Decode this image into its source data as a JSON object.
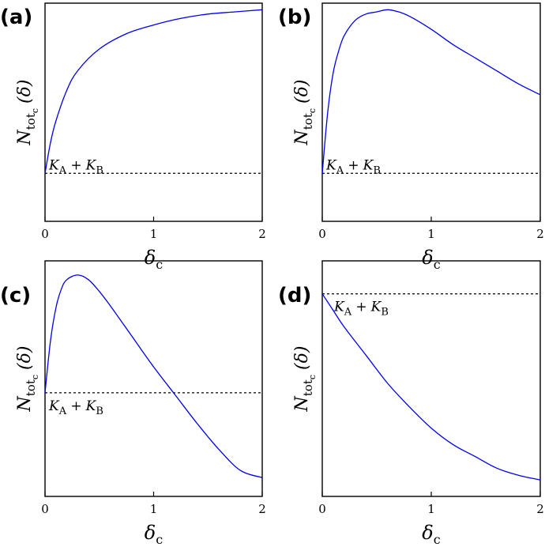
{
  "chart_data": [
    {
      "type": "line",
      "panel_label": "(a)",
      "xlabel": "δc",
      "ylabel": "Ntotc (δ)",
      "x_ticks": [
        "0",
        "1",
        "2"
      ],
      "xlim": [
        0,
        2
      ],
      "ylim": [
        0,
        1
      ],
      "grid": false,
      "reference_line": {
        "label": "KA + KB",
        "y": 0.22,
        "style": "dashed"
      },
      "series": [
        {
          "color": "#0000ee",
          "x": [
            0,
            0.05,
            0.1,
            0.2,
            0.3,
            0.5,
            0.75,
            1.0,
            1.25,
            1.5,
            1.75,
            2.0
          ],
          "y": [
            0.22,
            0.36,
            0.46,
            0.6,
            0.69,
            0.79,
            0.86,
            0.9,
            0.93,
            0.95,
            0.96,
            0.97
          ]
        }
      ]
    },
    {
      "type": "line",
      "panel_label": "(b)",
      "xlabel": "δc",
      "ylabel": "Ntotc (δ)",
      "x_ticks": [
        "0",
        "1",
        "2"
      ],
      "xlim": [
        0,
        2
      ],
      "ylim": [
        0,
        1
      ],
      "grid": false,
      "reference_line": {
        "label": "KA + KB",
        "y": 0.22,
        "style": "dashed"
      },
      "series": [
        {
          "color": "#0000ee",
          "x": [
            0,
            0.05,
            0.1,
            0.15,
            0.2,
            0.3,
            0.4,
            0.5,
            0.6,
            0.7,
            0.8,
            1.0,
            1.2,
            1.4,
            1.6,
            1.8,
            2.0
          ],
          "y": [
            0.22,
            0.5,
            0.68,
            0.78,
            0.85,
            0.92,
            0.95,
            0.96,
            0.97,
            0.96,
            0.94,
            0.88,
            0.81,
            0.75,
            0.69,
            0.63,
            0.58
          ]
        }
      ]
    },
    {
      "type": "line",
      "panel_label": "(c)",
      "xlabel": "δc",
      "ylabel": "Ntotc (δ)",
      "x_ticks": [
        "0",
        "1",
        "2"
      ],
      "xlim": [
        0,
        2
      ],
      "ylim": [
        0,
        1
      ],
      "grid": false,
      "reference_line": {
        "label": "KA + KB",
        "y": 0.44,
        "style": "dashed"
      },
      "series": [
        {
          "color": "#0000ee",
          "x": [
            0,
            0.05,
            0.1,
            0.15,
            0.2,
            0.3,
            0.4,
            0.5,
            0.6,
            0.8,
            1.0,
            1.2,
            1.4,
            1.6,
            1.8,
            2.0
          ],
          "y": [
            0.44,
            0.66,
            0.8,
            0.88,
            0.92,
            0.94,
            0.92,
            0.87,
            0.81,
            0.68,
            0.55,
            0.43,
            0.31,
            0.2,
            0.11,
            0.08
          ]
        }
      ]
    },
    {
      "type": "line",
      "panel_label": "(d)",
      "xlabel": "δc",
      "ylabel": "Ntotc (δ)",
      "x_ticks": [
        "0",
        "1",
        "2"
      ],
      "xlim": [
        0,
        2
      ],
      "ylim": [
        0,
        1
      ],
      "grid": false,
      "reference_line": {
        "label": "KA + KB",
        "y": 0.86,
        "style": "dashed"
      },
      "series": [
        {
          "color": "#0000ee",
          "x": [
            0,
            0.1,
            0.2,
            0.4,
            0.6,
            0.8,
            1.0,
            1.2,
            1.4,
            1.6,
            1.8,
            2.0
          ],
          "y": [
            0.86,
            0.79,
            0.72,
            0.6,
            0.48,
            0.38,
            0.29,
            0.22,
            0.17,
            0.12,
            0.09,
            0.07
          ]
        }
      ]
    }
  ]
}
